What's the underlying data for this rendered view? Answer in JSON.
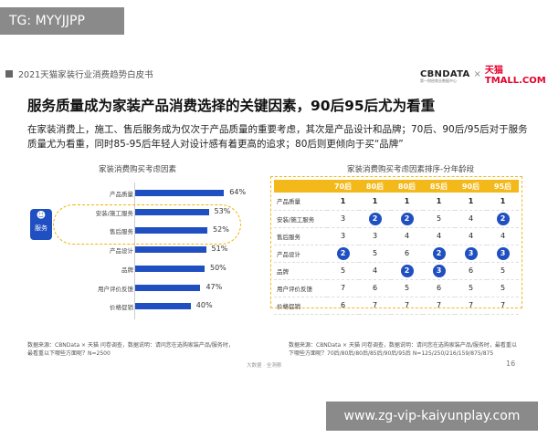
{
  "watermarks": {
    "top_left": "TG: MYYJJPP",
    "bottom_right": "www.zg-vip-kaiyunplay.com"
  },
  "header": {
    "report_title": "2021天猫家装行业消费趋势白皮书",
    "logo_cbn": "CBNDATA",
    "logo_cbn_sub": "第一财经商业数据中心",
    "logo_x": "×",
    "logo_tmall": "天猫 TMALL.COM"
  },
  "title": "服务质量成为家装产品消费选择的关键因素，90后95后尤为看重",
  "subtitle": "在家装消费上，施工、售后服务成为仅次于产品质量的重要考虑，其次是产品设计和品牌；70后、90后/95后对于服务质量尤为看重，同时85-95后年轻人对设计感有着更高的追求；80后则更倾向于买“品牌”",
  "left_chart": {
    "title": "家装消费购买考虑因素",
    "badge_label": "服务",
    "badge_icon": "person-icon"
  },
  "chart_data": {
    "type": "bar",
    "orientation": "horizontal",
    "title": "家装消费购买考虑因素",
    "categories": [
      "产品质量",
      "安装/施工服务",
      "售后服务",
      "产品设计",
      "品牌",
      "用户评价反馈",
      "价格促销"
    ],
    "values": [
      64,
      53,
      52,
      51,
      50,
      47,
      40
    ],
    "value_labels": [
      "64%",
      "53%",
      "52%",
      "51%",
      "50%",
      "47%",
      "40%"
    ],
    "unit": "%",
    "color": "#1f4fc1",
    "highlight_categories": [
      "安装/施工服务",
      "售后服务"
    ]
  },
  "right_table": {
    "title": "家装消费购买考虑因素排序-分年龄段",
    "headers": [
      "",
      "70后",
      "80后",
      "80后",
      "85后",
      "90后",
      "95后"
    ],
    "rows": [
      {
        "label": "产品质量",
        "cells": [
          {
            "v": "1",
            "c": false
          },
          {
            "v": "1",
            "c": false
          },
          {
            "v": "1",
            "c": false
          },
          {
            "v": "1",
            "c": false
          },
          {
            "v": "1",
            "c": false
          },
          {
            "v": "1",
            "c": false
          }
        ],
        "bold": true
      },
      {
        "label": "安装/施工服务",
        "cells": [
          {
            "v": "3",
            "c": false
          },
          {
            "v": "2",
            "c": true
          },
          {
            "v": "2",
            "c": true
          },
          {
            "v": "5",
            "c": false
          },
          {
            "v": "4",
            "c": false
          },
          {
            "v": "2",
            "c": true
          }
        ],
        "bold": false
      },
      {
        "label": "售后服务",
        "cells": [
          {
            "v": "3",
            "c": false
          },
          {
            "v": "3",
            "c": false
          },
          {
            "v": "4",
            "c": false
          },
          {
            "v": "4",
            "c": false
          },
          {
            "v": "4",
            "c": false
          },
          {
            "v": "4",
            "c": false
          }
        ],
        "bold": false
      },
      {
        "label": "产品设计",
        "cells": [
          {
            "v": "2",
            "c": true
          },
          {
            "v": "5",
            "c": false
          },
          {
            "v": "6",
            "c": false
          },
          {
            "v": "2",
            "c": true
          },
          {
            "v": "3",
            "c": true
          },
          {
            "v": "3",
            "c": true
          }
        ],
        "bold": false
      },
      {
        "label": "品牌",
        "cells": [
          {
            "v": "5",
            "c": false
          },
          {
            "v": "4",
            "c": false
          },
          {
            "v": "2",
            "c": true
          },
          {
            "v": "3",
            "c": true
          },
          {
            "v": "6",
            "c": false
          },
          {
            "v": "5",
            "c": false
          }
        ],
        "bold": false
      },
      {
        "label": "用户评价反馈",
        "cells": [
          {
            "v": "7",
            "c": false
          },
          {
            "v": "6",
            "c": false
          },
          {
            "v": "5",
            "c": false
          },
          {
            "v": "6",
            "c": false
          },
          {
            "v": "5",
            "c": false
          },
          {
            "v": "5",
            "c": false
          }
        ],
        "bold": false
      },
      {
        "label": "价格促销",
        "cells": [
          {
            "v": "6",
            "c": false
          },
          {
            "v": "7",
            "c": false
          },
          {
            "v": "7",
            "c": false
          },
          {
            "v": "7",
            "c": false
          },
          {
            "v": "7",
            "c": false
          },
          {
            "v": "7",
            "c": false
          }
        ],
        "bold": false
      }
    ]
  },
  "footer": {
    "source_left": "数据来源：CBNData × 天猫 问卷调查，数据说明：请问您在选购家装产品/服务时，最看重以下哪些方面呢？N=2500",
    "source_right": "数据来源：CBNData × 天猫 问卷调查，数据说明：请问您在选购家装产品/服务时，最看重以下哪些方面呢？70后/80后/80后/85后/90后/95后 N=125/250/216/159/875/875",
    "note": "大数据 · 全洞察",
    "page_number": "16"
  },
  "colors": {
    "bar_blue": "#1f4fc1",
    "table_header_yellow": "#f3b81a",
    "highlight_outline": "#f0b400",
    "tmall_red": "#e4002b"
  }
}
